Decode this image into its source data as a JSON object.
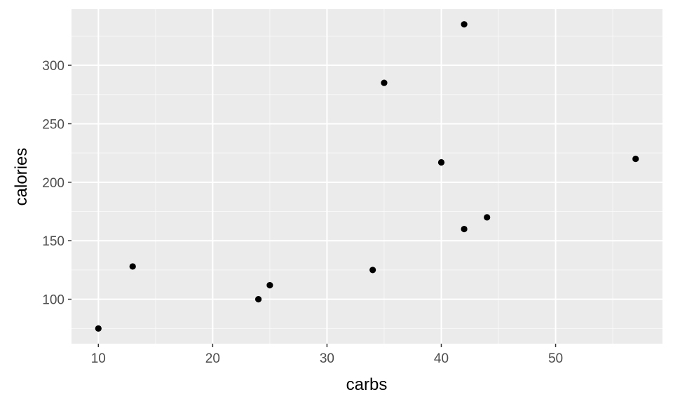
{
  "chart_data": {
    "type": "scatter",
    "title": "",
    "xlabel": "carbs",
    "ylabel": "calories",
    "xlim": [
      7.65,
      59.35
    ],
    "ylim": [
      62,
      348
    ],
    "x_ticks": [
      10,
      20,
      30,
      40,
      50
    ],
    "y_ticks": [
      100,
      150,
      200,
      250,
      300
    ],
    "x_tick_labels": [
      "10",
      "20",
      "30",
      "40",
      "50"
    ],
    "y_tick_labels": [
      "100",
      "150",
      "200",
      "250",
      "300"
    ],
    "grid": true,
    "legend": "none",
    "points": [
      {
        "x": 10,
        "y": 75
      },
      {
        "x": 13,
        "y": 128
      },
      {
        "x": 24,
        "y": 100
      },
      {
        "x": 25,
        "y": 112
      },
      {
        "x": 34,
        "y": 125
      },
      {
        "x": 35,
        "y": 285
      },
      {
        "x": 40,
        "y": 217
      },
      {
        "x": 42,
        "y": 335
      },
      {
        "x": 42,
        "y": 160
      },
      {
        "x": 44,
        "y": 170
      },
      {
        "x": 57,
        "y": 220
      }
    ]
  },
  "colors": {
    "panel_background": "#ebebeb",
    "grid_line": "#ffffff",
    "point": "#000000",
    "tick_label": "#4d4d4d",
    "axis_title": "#000000"
  }
}
